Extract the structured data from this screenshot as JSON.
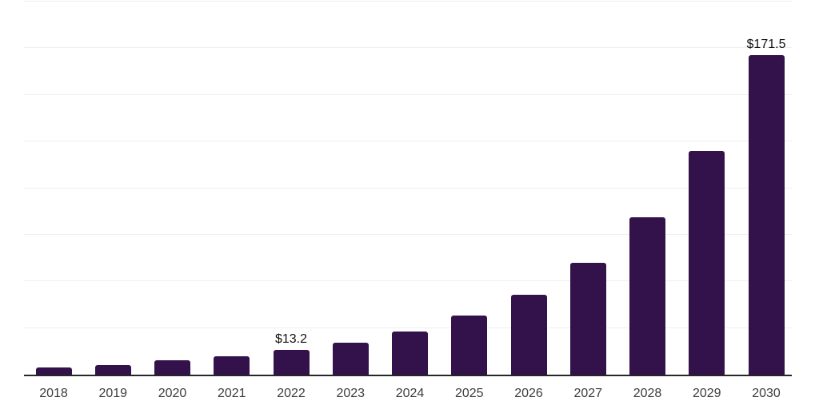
{
  "chart_data": {
    "type": "bar",
    "title": "",
    "xlabel": "",
    "ylabel": "",
    "categories": [
      "2018",
      "2019",
      "2020",
      "2021",
      "2022",
      "2023",
      "2024",
      "2025",
      "2026",
      "2027",
      "2028",
      "2029",
      "2030"
    ],
    "values": [
      3.8,
      5.2,
      7.7,
      9.9,
      13.2,
      17.2,
      23.0,
      31.8,
      43.0,
      60.0,
      84.4,
      120.0,
      171.5
    ],
    "value_labels": [
      "",
      "",
      "",
      "",
      "$13.2",
      "",
      "",
      "",
      "",
      "",
      "",
      "",
      "$171.5"
    ],
    "ylim": [
      0,
      200
    ],
    "grid_step": 25,
    "grid": true,
    "legend": false,
    "y_tick_labels_visible": false,
    "colors": {
      "bar": "#33124C",
      "grid": "#efefef",
      "axis": "#262626",
      "tick_label": "#3d3d3d",
      "value_label": "#111111",
      "background": "#ffffff"
    }
  }
}
